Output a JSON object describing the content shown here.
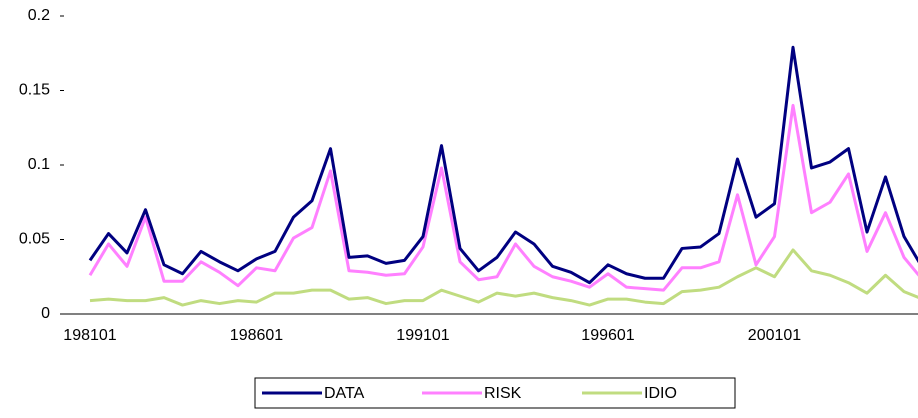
{
  "chart_data": {
    "type": "line",
    "categories": [
      "198101",
      null,
      null,
      null,
      null,
      null,
      null,
      null,
      null,
      "198601",
      null,
      null,
      null,
      null,
      null,
      null,
      null,
      null,
      "199101",
      null,
      null,
      null,
      null,
      null,
      null,
      null,
      null,
      null,
      "199601",
      null,
      null,
      null,
      null,
      null,
      null,
      null,
      null,
      "200101",
      null,
      null,
      null,
      null,
      null,
      null,
      null,
      null
    ],
    "series": [
      {
        "name": "DATA",
        "color": "#000080",
        "values": [
          0.036,
          0.054,
          0.041,
          0.07,
          0.033,
          0.027,
          0.042,
          0.035,
          0.029,
          0.037,
          0.042,
          0.065,
          0.076,
          0.111,
          0.038,
          0.039,
          0.034,
          0.036,
          0.052,
          0.113,
          0.044,
          0.029,
          0.038,
          0.055,
          0.047,
          0.032,
          0.028,
          0.021,
          0.033,
          0.027,
          0.024,
          0.024,
          0.044,
          0.045,
          0.054,
          0.104,
          0.065,
          0.074,
          0.179,
          0.098,
          0.102,
          0.111,
          0.055,
          0.092,
          0.052,
          0.031
        ]
      },
      {
        "name": "RISK",
        "color": "#ff80ff",
        "values": [
          0.026,
          0.047,
          0.032,
          0.065,
          0.022,
          0.022,
          0.035,
          0.028,
          0.019,
          0.031,
          0.029,
          0.051,
          0.058,
          0.096,
          0.029,
          0.028,
          0.026,
          0.027,
          0.045,
          0.098,
          0.035,
          0.023,
          0.025,
          0.047,
          0.032,
          0.025,
          0.022,
          0.018,
          0.027,
          0.018,
          0.017,
          0.016,
          0.031,
          0.031,
          0.035,
          0.08,
          0.033,
          0.052,
          0.14,
          0.068,
          0.075,
          0.094,
          0.042,
          0.068,
          0.038,
          0.023
        ]
      },
      {
        "name": "IDIO",
        "color": "#c0dc80",
        "values": [
          0.009,
          0.01,
          0.009,
          0.009,
          0.011,
          0.006,
          0.009,
          0.007,
          0.009,
          0.008,
          0.014,
          0.014,
          0.016,
          0.016,
          0.01,
          0.011,
          0.007,
          0.009,
          0.009,
          0.016,
          0.012,
          0.008,
          0.014,
          0.012,
          0.014,
          0.011,
          0.009,
          0.006,
          0.01,
          0.01,
          0.008,
          0.007,
          0.015,
          0.016,
          0.018,
          0.025,
          0.031,
          0.025,
          0.043,
          0.029,
          0.026,
          0.021,
          0.014,
          0.026,
          0.015,
          0.01
        ]
      }
    ],
    "ylim": [
      0,
      0.2
    ],
    "yticks": [
      0,
      0.05,
      0.1,
      0.15,
      0.2
    ],
    "legend": "bottom"
  }
}
